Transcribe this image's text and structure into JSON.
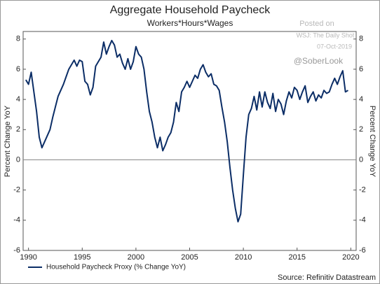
{
  "chart_data": {
    "type": "line",
    "title": "Aggregate Household Paycheck",
    "subtitle": "Workers*Hours*Wages",
    "ylabel": "Percent Change YoY",
    "source": "Source: Refinitiv Datastream",
    "annotations": [
      "Posted on",
      "WSJ: The Daily Shot",
      "07-Oct-2019",
      "@SoberLook"
    ],
    "xlim": [
      1989.5,
      2020.5
    ],
    "xticks": [
      1990,
      1995,
      2000,
      2005,
      2010,
      2015,
      2020
    ],
    "ylim": [
      -6,
      8.5
    ],
    "yticks": [
      -6,
      -4,
      -2,
      0,
      2,
      4,
      6,
      8
    ],
    "grid": false,
    "legend": "bottom-left",
    "x": [
      1989.75,
      1990,
      1990.25,
      1990.5,
      1990.75,
      1991,
      1991.25,
      1991.5,
      1991.75,
      1992,
      1992.25,
      1992.5,
      1992.75,
      1993,
      1993.25,
      1993.5,
      1993.75,
      1994,
      1994.25,
      1994.5,
      1994.75,
      1995,
      1995.25,
      1995.5,
      1995.75,
      1996,
      1996.25,
      1996.5,
      1996.75,
      1997,
      1997.25,
      1997.5,
      1997.75,
      1998,
      1998.25,
      1998.5,
      1998.75,
      1999,
      1999.25,
      1999.5,
      1999.75,
      2000,
      2000.25,
      2000.5,
      2000.75,
      2001,
      2001.25,
      2001.5,
      2001.75,
      2002,
      2002.25,
      2002.5,
      2002.75,
      2003,
      2003.25,
      2003.5,
      2003.75,
      2004,
      2004.25,
      2004.5,
      2004.75,
      2005,
      2005.25,
      2005.5,
      2005.75,
      2006,
      2006.25,
      2006.5,
      2006.75,
      2007,
      2007.25,
      2007.5,
      2007.75,
      2008,
      2008.25,
      2008.5,
      2008.75,
      2009,
      2009.25,
      2009.5,
      2009.75,
      2010,
      2010.25,
      2010.5,
      2010.75,
      2011,
      2011.25,
      2011.5,
      2011.75,
      2012,
      2012.25,
      2012.5,
      2012.75,
      2013,
      2013.25,
      2013.5,
      2013.75,
      2014,
      2014.25,
      2014.5,
      2014.75,
      2015,
      2015.25,
      2015.5,
      2015.75,
      2016,
      2016.25,
      2016.5,
      2016.75,
      2017,
      2017.25,
      2017.5,
      2017.75,
      2018,
      2018.25,
      2018.5,
      2018.75,
      2019,
      2019.25,
      2019.5,
      2019.75
    ],
    "series": [
      {
        "name": "Household Paycheck Proxy (% Change YoY)",
        "color": "#0b2d66",
        "values": [
          5.3,
          5.0,
          5.8,
          4.5,
          3.2,
          1.5,
          0.8,
          1.2,
          1.6,
          2.0,
          2.8,
          3.5,
          4.2,
          4.6,
          5.0,
          5.5,
          6.0,
          6.3,
          6.6,
          6.2,
          6.6,
          6.5,
          5.2,
          5.0,
          4.3,
          4.8,
          6.2,
          6.5,
          6.8,
          7.8,
          7.0,
          7.5,
          7.9,
          7.6,
          6.8,
          7.0,
          6.4,
          6.0,
          6.7,
          6.0,
          6.5,
          7.5,
          7.0,
          6.8,
          6.0,
          4.5,
          3.2,
          2.5,
          1.5,
          0.8,
          1.5,
          0.6,
          1.0,
          1.5,
          1.8,
          2.5,
          3.8,
          3.2,
          4.5,
          4.8,
          5.2,
          4.8,
          5.2,
          5.6,
          5.4,
          6.0,
          6.3,
          5.8,
          5.5,
          5.7,
          5.0,
          4.9,
          4.6,
          3.5,
          2.5,
          1.2,
          -0.5,
          -2.0,
          -3.2,
          -4.1,
          -3.6,
          -1.0,
          1.5,
          3.0,
          3.4,
          4.2,
          3.3,
          4.5,
          3.5,
          4.5,
          3.8,
          3.4,
          4.4,
          3.2,
          4.0,
          3.7,
          3.0,
          3.9,
          4.5,
          4.1,
          4.8,
          4.6,
          4.0,
          4.5,
          4.9,
          3.8,
          4.2,
          4.5,
          3.9,
          4.3,
          4.1,
          4.6,
          4.4,
          4.5,
          5.0,
          5.4,
          5.0,
          5.5,
          5.9,
          4.5,
          4.6
        ]
      }
    ]
  }
}
